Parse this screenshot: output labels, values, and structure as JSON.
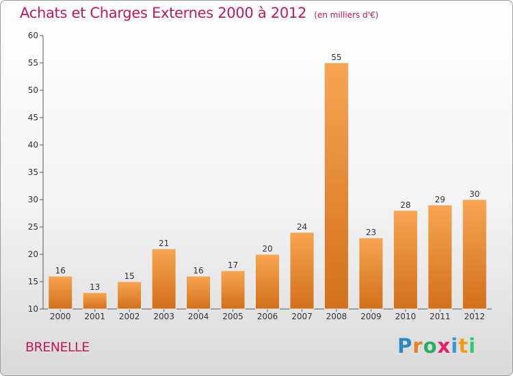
{
  "header": {
    "title": "Achats et Charges Externes 2000 à 2012",
    "unit": "(en milliers d'€)"
  },
  "footer": {
    "commune": "BRENELLE",
    "logo_letters": [
      "P",
      "r",
      "o",
      "x",
      "i",
      "t",
      "i"
    ],
    "logo_colors": [
      "#2e86c1",
      "#e67e22",
      "#27ae60",
      "#e91e63",
      "#3498db",
      "#f39c12",
      "#2ecc71"
    ]
  },
  "chart_data": {
    "type": "bar",
    "categories": [
      "2000",
      "2001",
      "2002",
      "2003",
      "2004",
      "2005",
      "2006",
      "2007",
      "2008",
      "2009",
      "2010",
      "2011",
      "2012"
    ],
    "values": [
      16,
      13,
      15,
      21,
      16,
      17,
      20,
      24,
      55,
      23,
      28,
      29,
      30
    ],
    "ylim": [
      10,
      60
    ],
    "yticks": [
      10,
      15,
      20,
      25,
      30,
      35,
      40,
      45,
      50,
      55,
      60
    ],
    "grid": false,
    "legend": "none",
    "bar_color_top": "#f7a552",
    "bar_color_bottom": "#d2701a"
  }
}
